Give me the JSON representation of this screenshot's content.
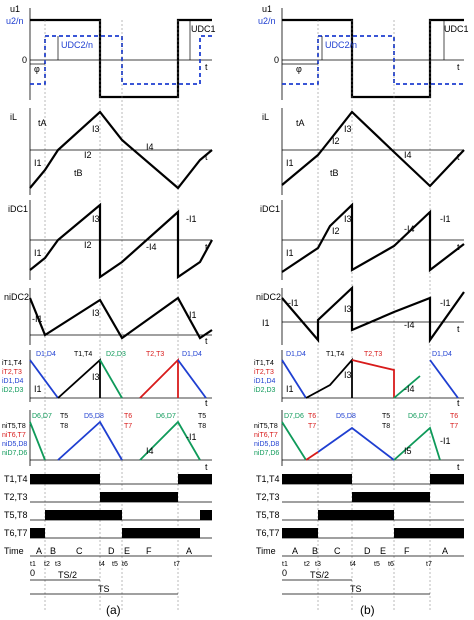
{
  "panels": [
    {
      "caption": "(a)",
      "rows": [
        {
          "labels": [
            "u1",
            "u2/n"
          ],
          "annotations": [
            "UDC1",
            "UDC2/n",
            "φ",
            "t",
            "0"
          ]
        },
        {
          "labels": [
            "iL"
          ],
          "annotations": [
            "tA",
            "I3",
            "I1",
            "I2",
            "I4",
            "tB",
            "t"
          ]
        },
        {
          "labels": [
            "iDC1"
          ],
          "annotations": [
            "I3",
            "-I1",
            "I2",
            "-I4",
            "I1",
            "t"
          ]
        },
        {
          "labels": [
            "niDC2"
          ],
          "annotations": [
            "-I1",
            "I3",
            "-I1",
            "t"
          ]
        },
        {
          "labels": [
            "iT1,T4",
            "iT2,T3",
            "iD1,D4",
            "iD2,D3"
          ],
          "annotations": [
            "D1,D4",
            "T1,T4",
            "D2,D3",
            "T2,T3",
            "D1,D4",
            "I3",
            "I1",
            "t"
          ]
        },
        {
          "labels": [
            "niT5,T8",
            "niT6,T7",
            "niD5,D8",
            "niD7,D6"
          ],
          "annotations": [
            "D6,D7",
            "T5",
            "D5,D8",
            "T6",
            "D6,D7",
            "T5",
            "T8",
            "T7",
            "T8",
            "-I1",
            "I4",
            "t"
          ]
        }
      ],
      "switch_rows": [
        "T1,T4",
        "T2,T3",
        "T5,T8",
        "T6,T7"
      ],
      "time_label": "Time",
      "intervals": [
        "A",
        "B",
        "C",
        "D",
        "E",
        "F",
        "A"
      ],
      "ticks": [
        "t1",
        "t2",
        "t3",
        "t4",
        "t5",
        "t6",
        "t7"
      ],
      "ts_half": "TS/2",
      "ts": "TS",
      "zero": "0"
    },
    {
      "caption": "(b)",
      "rows": [
        {
          "labels": [
            "u1",
            "u2/n"
          ],
          "annotations": [
            "UDC1",
            "UDC2/n",
            "φ",
            "t",
            "0"
          ]
        },
        {
          "labels": [
            "iL"
          ],
          "annotations": [
            "tA",
            "I3",
            "I1",
            "I2",
            "I4",
            "tB",
            "t"
          ]
        },
        {
          "labels": [
            "iDC1"
          ],
          "annotations": [
            "I3",
            "-I1",
            "I2",
            "-I4",
            "I1",
            "t"
          ]
        },
        {
          "labels": [
            "niDC2",
            "I1"
          ],
          "annotations": [
            "-I1",
            "I3",
            "-I1",
            "-I4",
            "t"
          ]
        },
        {
          "labels": [
            "iT1,T4",
            "iT2,T3",
            "iD1,D4",
            "iD2,D3"
          ],
          "annotations": [
            "D1,D4",
            "T1,T4",
            "T2,T3",
            "D1,D4",
            "I3",
            "I1",
            "-I4",
            "t"
          ]
        },
        {
          "labels": [
            "niT5,T8",
            "niT6,T7",
            "niD5,D8",
            "niD7,D6"
          ],
          "annotations": [
            "D7,D6",
            "T6",
            "T7",
            "D5,D8",
            "T5",
            "T8",
            "D6,D7",
            "T6",
            "T7",
            "-I1",
            "I5",
            "t"
          ]
        }
      ],
      "switch_rows": [
        "T1,T4",
        "T2,T3",
        "T5,T8",
        "T6,T7"
      ],
      "time_label": "Time",
      "intervals": [
        "A",
        "B",
        "C",
        "D",
        "E",
        "F",
        "A"
      ],
      "ticks": [
        "t1",
        "t2",
        "t3",
        "t4",
        "t5",
        "t6",
        "t7"
      ],
      "ts_half": "TS/2",
      "ts": "TS",
      "zero": "0"
    }
  ],
  "colors": {
    "blue": "#1f3fd1",
    "red": "#d81b1b",
    "green": "#0f9a5a"
  }
}
